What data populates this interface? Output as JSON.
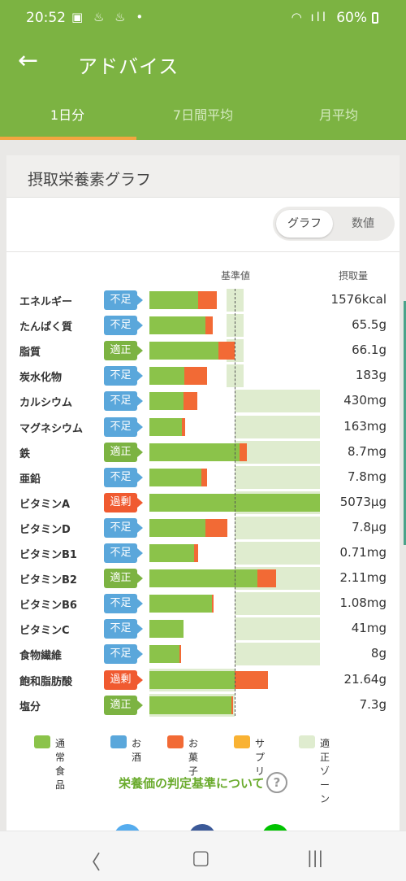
{
  "status_bar": {
    "time": "20:52",
    "notif_icons": "▣ ♨ ♨ •",
    "signal_icons": "◠ ıll",
    "battery": "60%"
  },
  "header": {
    "back_icon": "←",
    "title": "アドバイス"
  },
  "tabs": [
    {
      "label": "1日分",
      "active": true
    },
    {
      "label": "7日間平均",
      "active": false
    },
    {
      "label": "月平均",
      "active": false
    }
  ],
  "card": {
    "title": "摂取栄養素グラフ",
    "toggle": {
      "graph_label": "グラフ",
      "numeric_label": "数値",
      "selected": "グラフ"
    },
    "column_headers": {
      "reference": "基準値",
      "intake": "摂取量"
    }
  },
  "status_colors": {
    "不足": "#5aa7db",
    "適正": "#7cb342",
    "過剰": "#f05a30"
  },
  "chart_data": {
    "type": "bar",
    "note_scale": "reference (基準値) = 100%",
    "series_colors": {
      "通常食品": "#8bc34a",
      "お酒": "#5aa7db",
      "お菓子": "#f26a35",
      "サプリ": "#f9b233",
      "適正ゾーン": "#dfeccf"
    },
    "rows": [
      {
        "name": "エネルギー",
        "status": "不足",
        "value": "1576kcal",
        "food_pct": 57,
        "sweets_pct": 22,
        "zone_pct": [
          90,
          110
        ]
      },
      {
        "name": "たんぱく質",
        "status": "不足",
        "value": "65.5g",
        "food_pct": 66,
        "sweets_pct": 8,
        "zone_pct": [
          90,
          110
        ]
      },
      {
        "name": "脂質",
        "status": "適正",
        "value": "66.1g",
        "food_pct": 81,
        "sweets_pct": 19,
        "zone_pct": [
          90,
          110
        ]
      },
      {
        "name": "炭水化物",
        "status": "不足",
        "value": "183g",
        "food_pct": 41,
        "sweets_pct": 27,
        "zone_pct": [
          90,
          110
        ]
      },
      {
        "name": "カルシウム",
        "status": "不足",
        "value": "430mg",
        "food_pct": 40,
        "sweets_pct": 16,
        "zone_pct": [
          100,
          200
        ]
      },
      {
        "name": "マグネシウム",
        "status": "不足",
        "value": "163mg",
        "food_pct": 38,
        "sweets_pct": 4,
        "zone_pct": [
          100,
          200
        ]
      },
      {
        "name": "鉄",
        "status": "適正",
        "value": "8.7mg",
        "food_pct": 106,
        "sweets_pct": 8,
        "zone_pct": [
          100,
          200
        ]
      },
      {
        "name": "亜鉛",
        "status": "不足",
        "value": "7.8mg",
        "food_pct": 61,
        "sweets_pct": 7,
        "zone_pct": [
          100,
          200
        ]
      },
      {
        "name": "ビタミンA",
        "status": "過剰",
        "value": "5073μg",
        "food_pct": 200,
        "sweets_pct": 0,
        "zone_pct": [
          100,
          200
        ]
      },
      {
        "name": "ビタミンD",
        "status": "不足",
        "value": "7.8μg",
        "food_pct": 66,
        "sweets_pct": 25,
        "zone_pct": [
          100,
          200
        ]
      },
      {
        "name": "ビタミンB1",
        "status": "不足",
        "value": "0.71mg",
        "food_pct": 52,
        "sweets_pct": 5,
        "zone_pct": [
          100,
          200
        ]
      },
      {
        "name": "ビタミンB2",
        "status": "適正",
        "value": "2.11mg",
        "food_pct": 127,
        "sweets_pct": 22,
        "zone_pct": [
          100,
          200
        ]
      },
      {
        "name": "ビタミンB6",
        "status": "不足",
        "value": "1.08mg",
        "food_pct": 73,
        "sweets_pct": 2,
        "zone_pct": [
          100,
          200
        ]
      },
      {
        "name": "ビタミンC",
        "status": "不足",
        "value": "41mg",
        "food_pct": 40,
        "sweets_pct": 0,
        "zone_pct": [
          100,
          200
        ]
      },
      {
        "name": "食物繊維",
        "status": "不足",
        "value": "8g",
        "food_pct": 35,
        "sweets_pct": 2,
        "zone_pct": [
          100,
          200
        ]
      },
      {
        "name": "飽和脂肪酸",
        "status": "過剰",
        "value": "21.64g",
        "food_pct": 100,
        "sweets_pct": 39,
        "zone_pct": [
          0,
          100
        ]
      },
      {
        "name": "塩分",
        "status": "適正",
        "value": "7.3g",
        "food_pct": 96,
        "sweets_pct": 2,
        "zone_pct": [
          0,
          100
        ]
      }
    ]
  },
  "legend": [
    {
      "label": "通常食品",
      "color": "#8bc34a"
    },
    {
      "label": "お酒",
      "color": "#5aa7db"
    },
    {
      "label": "お菓子",
      "color": "#f26a35"
    },
    {
      "label": "サプリ",
      "color": "#f9b233"
    },
    {
      "label": "適正ゾーン",
      "color": "#dfeccf"
    }
  ],
  "link": {
    "label": "栄養価の判定基準について",
    "help_icon": "?"
  },
  "share_icons": [
    {
      "name": "twitter-icon",
      "color": "#55acee"
    },
    {
      "name": "facebook-icon",
      "color": "#3b5998"
    },
    {
      "name": "line-icon",
      "color": "#00c300"
    }
  ],
  "nav": {
    "back": "〈",
    "home": "▢",
    "recents": "|||"
  }
}
